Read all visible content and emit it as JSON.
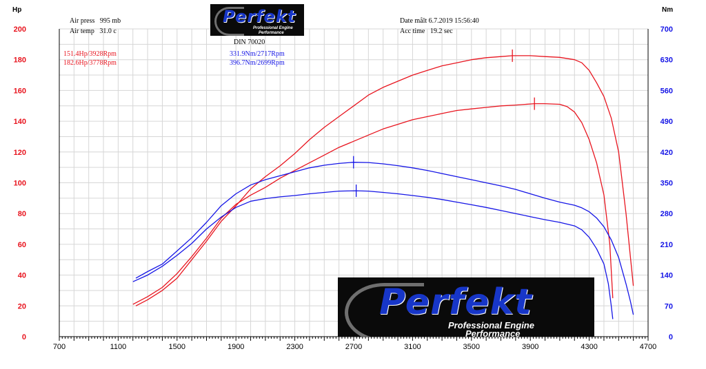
{
  "header": {
    "air_press_label": "Air press",
    "air_press_value": "995 mb",
    "air_temp_label": "Air temp",
    "air_temp_value": "31.0 c",
    "date_label": "Date målt",
    "date_value": "6.7.2019 15:56:40",
    "acc_time_label": "Acc time",
    "acc_time_value": "19.2 sec",
    "standard": "DIN 70020"
  },
  "logo": {
    "name": "Perfekt",
    "tagline_line1": "Professional Engine",
    "tagline_line2": "Performance"
  },
  "axes": {
    "left_title": "Hp",
    "right_title": "Nm"
  },
  "annotations": {
    "power_1": "151.4Hp/3928Rpm",
    "power_2": "182.6Hp/3778Rpm",
    "torque_1": "331.9Nm/2717Rpm",
    "torque_2": "396.7Nm/2699Rpm"
  },
  "colors": {
    "power": "#e8141e",
    "torque": "#1414e6",
    "grid": "#d6d6d6",
    "logo_blue": "#1736c8"
  },
  "chart_data": {
    "type": "line",
    "title": "",
    "xlabel": "",
    "ylabel_left": "Hp",
    "ylabel_right": "Nm",
    "xlim": [
      700,
      4700
    ],
    "ylim_left": [
      0,
      200
    ],
    "ylim_right": [
      0,
      700
    ],
    "x_ticks": [
      700,
      1100,
      1500,
      1900,
      2300,
      2700,
      3100,
      3500,
      3900,
      4300,
      4700
    ],
    "y_ticks_left": [
      0,
      20,
      40,
      60,
      80,
      100,
      120,
      140,
      160,
      180,
      200
    ],
    "y_ticks_right": [
      0,
      70,
      140,
      210,
      280,
      350,
      420,
      490,
      560,
      630,
      700
    ],
    "grid": true,
    "legend": "none",
    "series": [
      {
        "axis": "left",
        "color": "#e8141e",
        "peak": [
          3928,
          151.4
        ],
        "points": [
          [
            1200,
            21
          ],
          [
            1300,
            26
          ],
          [
            1400,
            32
          ],
          [
            1500,
            41
          ],
          [
            1600,
            52
          ],
          [
            1700,
            64
          ],
          [
            1800,
            77
          ],
          [
            1900,
            86
          ],
          [
            2000,
            92
          ],
          [
            2100,
            97
          ],
          [
            2200,
            103
          ],
          [
            2300,
            108
          ],
          [
            2400,
            113
          ],
          [
            2500,
            118
          ],
          [
            2600,
            123
          ],
          [
            2700,
            127
          ],
          [
            2800,
            131
          ],
          [
            2900,
            135
          ],
          [
            3000,
            138
          ],
          [
            3100,
            141
          ],
          [
            3200,
            143
          ],
          [
            3300,
            145
          ],
          [
            3400,
            147
          ],
          [
            3500,
            148
          ],
          [
            3600,
            149
          ],
          [
            3700,
            150
          ],
          [
            3800,
            150.5
          ],
          [
            3928,
            151.4
          ],
          [
            4000,
            151.4
          ],
          [
            4100,
            151
          ],
          [
            4150,
            149.5
          ],
          [
            4200,
            146
          ],
          [
            4250,
            139
          ],
          [
            4300,
            128
          ],
          [
            4350,
            113
          ],
          [
            4400,
            92
          ],
          [
            4440,
            60
          ],
          [
            4460,
            25
          ]
        ]
      },
      {
        "axis": "left",
        "color": "#e8141e",
        "peak": [
          3778,
          182.6
        ],
        "points": [
          [
            1220,
            20
          ],
          [
            1300,
            24
          ],
          [
            1400,
            30
          ],
          [
            1500,
            38
          ],
          [
            1600,
            50
          ],
          [
            1700,
            62
          ],
          [
            1800,
            75
          ],
          [
            1900,
            85
          ],
          [
            2000,
            96
          ],
          [
            2100,
            104
          ],
          [
            2200,
            111
          ],
          [
            2300,
            119
          ],
          [
            2400,
            128
          ],
          [
            2500,
            136
          ],
          [
            2600,
            143
          ],
          [
            2700,
            150
          ],
          [
            2800,
            157
          ],
          [
            2900,
            162
          ],
          [
            3000,
            166
          ],
          [
            3100,
            170
          ],
          [
            3200,
            173
          ],
          [
            3300,
            176
          ],
          [
            3400,
            178
          ],
          [
            3500,
            180
          ],
          [
            3600,
            181.3
          ],
          [
            3700,
            182
          ],
          [
            3778,
            182.6
          ],
          [
            3900,
            182.6
          ],
          [
            4000,
            182
          ],
          [
            4100,
            181.5
          ],
          [
            4200,
            180
          ],
          [
            4250,
            178
          ],
          [
            4300,
            173
          ],
          [
            4350,
            165
          ],
          [
            4400,
            156
          ],
          [
            4450,
            142
          ],
          [
            4500,
            120
          ],
          [
            4550,
            80
          ],
          [
            4600,
            33
          ]
        ]
      },
      {
        "axis": "right",
        "color": "#1414e6",
        "peak": [
          2717,
          331.9
        ],
        "points": [
          [
            1200,
            125
          ],
          [
            1300,
            140
          ],
          [
            1400,
            160
          ],
          [
            1500,
            185
          ],
          [
            1600,
            212
          ],
          [
            1700,
            245
          ],
          [
            1800,
            272
          ],
          [
            1900,
            294
          ],
          [
            2000,
            308
          ],
          [
            2100,
            314
          ],
          [
            2200,
            318
          ],
          [
            2300,
            321
          ],
          [
            2400,
            325
          ],
          [
            2500,
            328
          ],
          [
            2600,
            331
          ],
          [
            2717,
            331.9
          ],
          [
            2800,
            331
          ],
          [
            2900,
            328
          ],
          [
            3000,
            325
          ],
          [
            3100,
            321
          ],
          [
            3200,
            317
          ],
          [
            3300,
            312
          ],
          [
            3400,
            306
          ],
          [
            3500,
            300
          ],
          [
            3600,
            294
          ],
          [
            3700,
            287
          ],
          [
            3800,
            280
          ],
          [
            3900,
            273
          ],
          [
            4000,
            266
          ],
          [
            4100,
            260
          ],
          [
            4200,
            252
          ],
          [
            4250,
            243
          ],
          [
            4300,
            226
          ],
          [
            4350,
            200
          ],
          [
            4400,
            165
          ],
          [
            4430,
            120
          ],
          [
            4450,
            70
          ],
          [
            4460,
            40
          ]
        ]
      },
      {
        "axis": "right",
        "color": "#1414e6",
        "peak": [
          2699,
          396.7
        ],
        "points": [
          [
            1220,
            133
          ],
          [
            1300,
            148
          ],
          [
            1400,
            165
          ],
          [
            1500,
            195
          ],
          [
            1600,
            225
          ],
          [
            1700,
            260
          ],
          [
            1800,
            298
          ],
          [
            1900,
            325
          ],
          [
            2000,
            345
          ],
          [
            2100,
            357
          ],
          [
            2200,
            366
          ],
          [
            2300,
            375
          ],
          [
            2400,
            384
          ],
          [
            2500,
            390
          ],
          [
            2600,
            394
          ],
          [
            2699,
            396.7
          ],
          [
            2800,
            396
          ],
          [
            2900,
            393
          ],
          [
            3000,
            389
          ],
          [
            3100,
            384
          ],
          [
            3200,
            378
          ],
          [
            3300,
            371
          ],
          [
            3400,
            364
          ],
          [
            3500,
            357
          ],
          [
            3600,
            350
          ],
          [
            3700,
            343
          ],
          [
            3800,
            335
          ],
          [
            3900,
            325
          ],
          [
            4000,
            315
          ],
          [
            4100,
            306
          ],
          [
            4200,
            299
          ],
          [
            4250,
            293
          ],
          [
            4300,
            284
          ],
          [
            4350,
            270
          ],
          [
            4400,
            250
          ],
          [
            4450,
            220
          ],
          [
            4500,
            180
          ],
          [
            4550,
            120
          ],
          [
            4580,
            80
          ],
          [
            4600,
            50
          ]
        ]
      }
    ]
  }
}
